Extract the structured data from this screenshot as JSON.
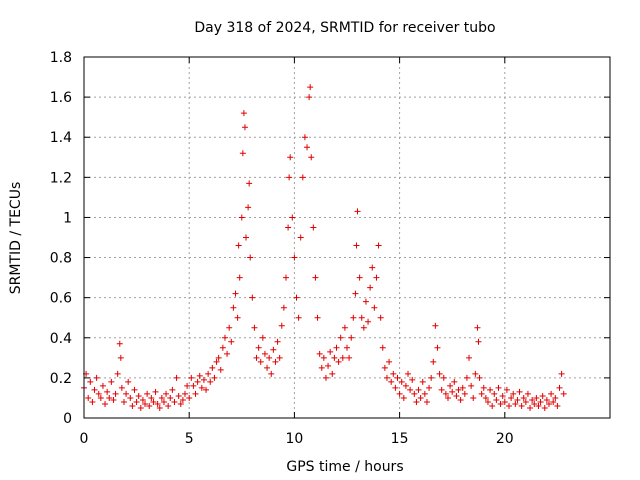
{
  "chart_data": {
    "type": "scatter",
    "title": "Day 318 of 2024, SRMTID for receiver tubo",
    "xlabel": "GPS time / hours",
    "ylabel": "SRMTID / TECUs",
    "xlim": [
      0,
      25
    ],
    "ylim": [
      0,
      1.8
    ],
    "xticks": [
      0,
      5,
      10,
      15,
      20
    ],
    "xtick_labels": [
      "0",
      "5",
      "10",
      "15",
      "20"
    ],
    "yticks": [
      0,
      0.2,
      0.4,
      0.6,
      0.8,
      1.0,
      1.2,
      1.4,
      1.6,
      1.8
    ],
    "ytick_labels": [
      "0",
      "0.2",
      "0.4",
      "0.6",
      "0.8",
      "1",
      "1.2",
      "1.4",
      "1.6",
      "1.8"
    ],
    "grid": true,
    "marker": "+",
    "marker_color": "#e00000",
    "series": [
      {
        "name": "SRMTID",
        "points": [
          [
            0.0,
            0.15
          ],
          [
            0.1,
            0.22
          ],
          [
            0.2,
            0.1
          ],
          [
            0.3,
            0.18
          ],
          [
            0.4,
            0.08
          ],
          [
            0.5,
            0.14
          ],
          [
            0.6,
            0.2
          ],
          [
            0.7,
            0.12
          ],
          [
            0.8,
            0.1
          ],
          [
            0.9,
            0.16
          ],
          [
            1.0,
            0.07
          ],
          [
            1.1,
            0.13
          ],
          [
            1.2,
            0.1
          ],
          [
            1.3,
            0.18
          ],
          [
            1.4,
            0.09
          ],
          [
            1.5,
            0.12
          ],
          [
            1.6,
            0.22
          ],
          [
            1.7,
            0.37
          ],
          [
            1.75,
            0.3
          ],
          [
            1.8,
            0.15
          ],
          [
            1.9,
            0.08
          ],
          [
            2.0,
            0.12
          ],
          [
            2.1,
            0.18
          ],
          [
            2.2,
            0.1
          ],
          [
            2.3,
            0.06
          ],
          [
            2.4,
            0.14
          ],
          [
            2.5,
            0.08
          ],
          [
            2.6,
            0.11
          ],
          [
            2.7,
            0.05
          ],
          [
            2.8,
            0.09
          ],
          [
            2.9,
            0.07
          ],
          [
            3.0,
            0.12
          ],
          [
            3.1,
            0.06
          ],
          [
            3.2,
            0.1
          ],
          [
            3.3,
            0.08
          ],
          [
            3.4,
            0.13
          ],
          [
            3.5,
            0.07
          ],
          [
            3.6,
            0.05
          ],
          [
            3.7,
            0.1
          ],
          [
            3.8,
            0.08
          ],
          [
            3.9,
            0.12
          ],
          [
            4.0,
            0.06
          ],
          [
            4.1,
            0.1
          ],
          [
            4.2,
            0.14
          ],
          [
            4.3,
            0.08
          ],
          [
            4.4,
            0.2
          ],
          [
            4.5,
            0.11
          ],
          [
            4.6,
            0.07
          ],
          [
            4.7,
            0.09
          ],
          [
            4.8,
            0.12
          ],
          [
            4.9,
            0.16
          ],
          [
            5.0,
            0.1
          ],
          [
            5.1,
            0.2
          ],
          [
            5.2,
            0.16
          ],
          [
            5.3,
            0.12
          ],
          [
            5.4,
            0.18
          ],
          [
            5.5,
            0.21
          ],
          [
            5.6,
            0.15
          ],
          [
            5.7,
            0.19
          ],
          [
            5.8,
            0.14
          ],
          [
            5.9,
            0.22
          ],
          [
            6.0,
            0.18
          ],
          [
            6.1,
            0.25
          ],
          [
            6.2,
            0.2
          ],
          [
            6.3,
            0.28
          ],
          [
            6.4,
            0.3
          ],
          [
            6.5,
            0.24
          ],
          [
            6.6,
            0.35
          ],
          [
            6.7,
            0.4
          ],
          [
            6.8,
            0.32
          ],
          [
            6.9,
            0.45
          ],
          [
            7.0,
            0.38
          ],
          [
            7.1,
            0.55
          ],
          [
            7.2,
            0.62
          ],
          [
            7.3,
            0.5
          ],
          [
            7.35,
            0.86
          ],
          [
            7.4,
            0.7
          ],
          [
            7.5,
            1.0
          ],
          [
            7.55,
            1.32
          ],
          [
            7.6,
            1.52
          ],
          [
            7.65,
            1.45
          ],
          [
            7.7,
            0.9
          ],
          [
            7.8,
            1.05
          ],
          [
            7.85,
            1.17
          ],
          [
            7.9,
            0.8
          ],
          [
            8.0,
            0.6
          ],
          [
            8.1,
            0.45
          ],
          [
            8.2,
            0.3
          ],
          [
            8.3,
            0.35
          ],
          [
            8.4,
            0.28
          ],
          [
            8.5,
            0.4
          ],
          [
            8.6,
            0.32
          ],
          [
            8.7,
            0.25
          ],
          [
            8.8,
            0.3
          ],
          [
            8.9,
            0.22
          ],
          [
            9.0,
            0.34
          ],
          [
            9.1,
            0.28
          ],
          [
            9.2,
            0.38
          ],
          [
            9.3,
            0.3
          ],
          [
            9.4,
            0.46
          ],
          [
            9.5,
            0.55
          ],
          [
            9.6,
            0.7
          ],
          [
            9.7,
            0.95
          ],
          [
            9.75,
            1.2
          ],
          [
            9.8,
            1.3
          ],
          [
            9.9,
            1.0
          ],
          [
            10.0,
            0.8
          ],
          [
            10.1,
            0.6
          ],
          [
            10.2,
            0.5
          ],
          [
            10.3,
            0.9
          ],
          [
            10.4,
            1.2
          ],
          [
            10.5,
            1.4
          ],
          [
            10.6,
            1.35
          ],
          [
            10.7,
            1.6
          ],
          [
            10.75,
            1.65
          ],
          [
            10.8,
            1.3
          ],
          [
            10.9,
            0.95
          ],
          [
            11.0,
            0.7
          ],
          [
            11.1,
            0.5
          ],
          [
            11.2,
            0.32
          ],
          [
            11.3,
            0.25
          ],
          [
            11.4,
            0.3
          ],
          [
            11.5,
            0.2
          ],
          [
            11.6,
            0.26
          ],
          [
            11.7,
            0.33
          ],
          [
            11.8,
            0.22
          ],
          [
            11.9,
            0.3
          ],
          [
            12.0,
            0.35
          ],
          [
            12.1,
            0.28
          ],
          [
            12.2,
            0.4
          ],
          [
            12.3,
            0.3
          ],
          [
            12.4,
            0.45
          ],
          [
            12.5,
            0.35
          ],
          [
            12.6,
            0.3
          ],
          [
            12.7,
            0.4
          ],
          [
            12.8,
            0.5
          ],
          [
            12.9,
            0.62
          ],
          [
            12.95,
            0.86
          ],
          [
            13.0,
            1.03
          ],
          [
            13.1,
            0.7
          ],
          [
            13.2,
            0.5
          ],
          [
            13.3,
            0.45
          ],
          [
            13.4,
            0.58
          ],
          [
            13.5,
            0.48
          ],
          [
            13.6,
            0.65
          ],
          [
            13.7,
            0.75
          ],
          [
            13.8,
            0.55
          ],
          [
            13.9,
            0.7
          ],
          [
            14.0,
            0.86
          ],
          [
            14.1,
            0.5
          ],
          [
            14.2,
            0.35
          ],
          [
            14.3,
            0.25
          ],
          [
            14.4,
            0.2
          ],
          [
            14.5,
            0.28
          ],
          [
            14.6,
            0.18
          ],
          [
            14.7,
            0.22
          ],
          [
            14.8,
            0.15
          ],
          [
            14.9,
            0.2
          ],
          [
            15.0,
            0.12
          ],
          [
            15.1,
            0.18
          ],
          [
            15.2,
            0.1
          ],
          [
            15.3,
            0.16
          ],
          [
            15.4,
            0.22
          ],
          [
            15.5,
            0.14
          ],
          [
            15.6,
            0.19
          ],
          [
            15.7,
            0.12
          ],
          [
            15.8,
            0.08
          ],
          [
            15.9,
            0.14
          ],
          [
            16.0,
            0.1
          ],
          [
            16.1,
            0.18
          ],
          [
            16.2,
            0.12
          ],
          [
            16.3,
            0.08
          ],
          [
            16.4,
            0.15
          ],
          [
            16.5,
            0.2
          ],
          [
            16.6,
            0.28
          ],
          [
            16.7,
            0.46
          ],
          [
            16.8,
            0.35
          ],
          [
            16.9,
            0.22
          ],
          [
            17.0,
            0.14
          ],
          [
            17.1,
            0.2
          ],
          [
            17.2,
            0.12
          ],
          [
            17.3,
            0.1
          ],
          [
            17.4,
            0.16
          ],
          [
            17.5,
            0.13
          ],
          [
            17.6,
            0.18
          ],
          [
            17.7,
            0.11
          ],
          [
            17.8,
            0.14
          ],
          [
            17.9,
            0.09
          ],
          [
            18.0,
            0.15
          ],
          [
            18.1,
            0.12
          ],
          [
            18.2,
            0.2
          ],
          [
            18.3,
            0.3
          ],
          [
            18.4,
            0.16
          ],
          [
            18.5,
            0.1
          ],
          [
            18.6,
            0.22
          ],
          [
            18.7,
            0.45
          ],
          [
            18.75,
            0.38
          ],
          [
            18.8,
            0.2
          ],
          [
            18.9,
            0.12
          ],
          [
            19.0,
            0.15
          ],
          [
            19.1,
            0.1
          ],
          [
            19.2,
            0.08
          ],
          [
            19.3,
            0.14
          ],
          [
            19.4,
            0.06
          ],
          [
            19.5,
            0.12
          ],
          [
            19.6,
            0.09
          ],
          [
            19.7,
            0.15
          ],
          [
            19.8,
            0.07
          ],
          [
            19.9,
            0.11
          ],
          [
            20.0,
            0.08
          ],
          [
            20.1,
            0.14
          ],
          [
            20.2,
            0.06
          ],
          [
            20.3,
            0.1
          ],
          [
            20.4,
            0.12
          ],
          [
            20.5,
            0.07
          ],
          [
            20.6,
            0.09
          ],
          [
            20.7,
            0.13
          ],
          [
            20.8,
            0.06
          ],
          [
            20.9,
            0.1
          ],
          [
            21.0,
            0.08
          ],
          [
            21.1,
            0.12
          ],
          [
            21.2,
            0.05
          ],
          [
            21.3,
            0.09
          ],
          [
            21.4,
            0.07
          ],
          [
            21.5,
            0.1
          ],
          [
            21.6,
            0.06
          ],
          [
            21.7,
            0.08
          ],
          [
            21.8,
            0.11
          ],
          [
            21.9,
            0.05
          ],
          [
            22.0,
            0.09
          ],
          [
            22.1,
            0.07
          ],
          [
            22.2,
            0.12
          ],
          [
            22.3,
            0.08
          ],
          [
            22.4,
            0.1
          ],
          [
            22.5,
            0.06
          ],
          [
            22.6,
            0.15
          ],
          [
            22.7,
            0.22
          ],
          [
            22.8,
            0.12
          ]
        ]
      }
    ]
  }
}
